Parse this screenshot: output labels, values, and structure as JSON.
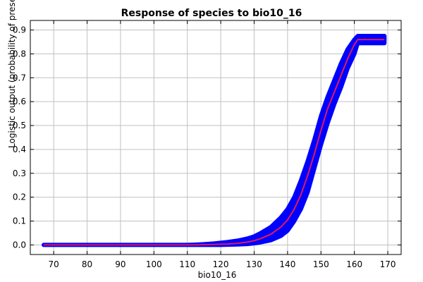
{
  "chart_data": {
    "type": "line",
    "title": "Response of species to bio10_16",
    "xlabel": "bio10_16",
    "ylabel": "Logistic output (probability of presence)",
    "xlim": [
      63,
      174
    ],
    "ylim": [
      -0.04,
      0.94
    ],
    "xticks": [
      70,
      80,
      90,
      100,
      110,
      120,
      130,
      140,
      150,
      160,
      170
    ],
    "yticks": [
      0.0,
      0.1,
      0.2,
      0.3,
      0.4,
      0.5,
      0.6,
      0.7,
      0.8,
      0.9
    ],
    "grid": true,
    "colors": {
      "mean": "#e0195a",
      "band": "#0000ff",
      "grid": "#c0c0c0"
    },
    "series": [
      {
        "role": "mean",
        "x": [
          67,
          80,
          90,
          100,
          110,
          112,
          115,
          118,
          120,
          122,
          125,
          128,
          130,
          132,
          135,
          138,
          140,
          142,
          144,
          146,
          148,
          150,
          152,
          154,
          156,
          158,
          160,
          161,
          162,
          165,
          169
        ],
        "y": [
          0.0,
          0.0,
          0.0,
          0.0,
          0.0,
          0.0,
          0.001,
          0.002,
          0.003,
          0.004,
          0.007,
          0.012,
          0.018,
          0.027,
          0.045,
          0.075,
          0.105,
          0.15,
          0.21,
          0.29,
          0.38,
          0.48,
          0.57,
          0.64,
          0.71,
          0.78,
          0.84,
          0.86,
          0.86,
          0.86,
          0.86
        ]
      },
      {
        "role": "band-upper",
        "x": [
          67,
          80,
          90,
          100,
          110,
          112,
          115,
          118,
          120,
          122,
          125,
          128,
          130,
          132,
          135,
          138,
          140,
          142,
          144,
          146,
          148,
          150,
          152,
          154,
          156,
          158,
          160,
          161,
          162,
          165,
          169
        ],
        "y": [
          0.0,
          0.0,
          0.0,
          0.0,
          0.0,
          0.001,
          0.003,
          0.006,
          0.009,
          0.012,
          0.018,
          0.027,
          0.036,
          0.05,
          0.075,
          0.115,
          0.15,
          0.2,
          0.27,
          0.35,
          0.44,
          0.54,
          0.62,
          0.69,
          0.76,
          0.82,
          0.86,
          0.875,
          0.875,
          0.875,
          0.875
        ]
      },
      {
        "role": "band-lower",
        "x": [
          67,
          80,
          90,
          100,
          110,
          112,
          115,
          118,
          120,
          122,
          125,
          128,
          130,
          132,
          135,
          138,
          140,
          142,
          144,
          146,
          148,
          150,
          152,
          154,
          156,
          158,
          160,
          161,
          162,
          165,
          169
        ],
        "y": [
          0.0,
          0.0,
          0.0,
          0.0,
          0.0,
          0.0,
          0.0,
          0.0,
          0.0,
          0.001,
          0.002,
          0.004,
          0.007,
          0.011,
          0.02,
          0.038,
          0.06,
          0.1,
          0.15,
          0.22,
          0.32,
          0.42,
          0.51,
          0.59,
          0.66,
          0.74,
          0.8,
          0.845,
          0.845,
          0.845,
          0.845
        ]
      }
    ]
  }
}
